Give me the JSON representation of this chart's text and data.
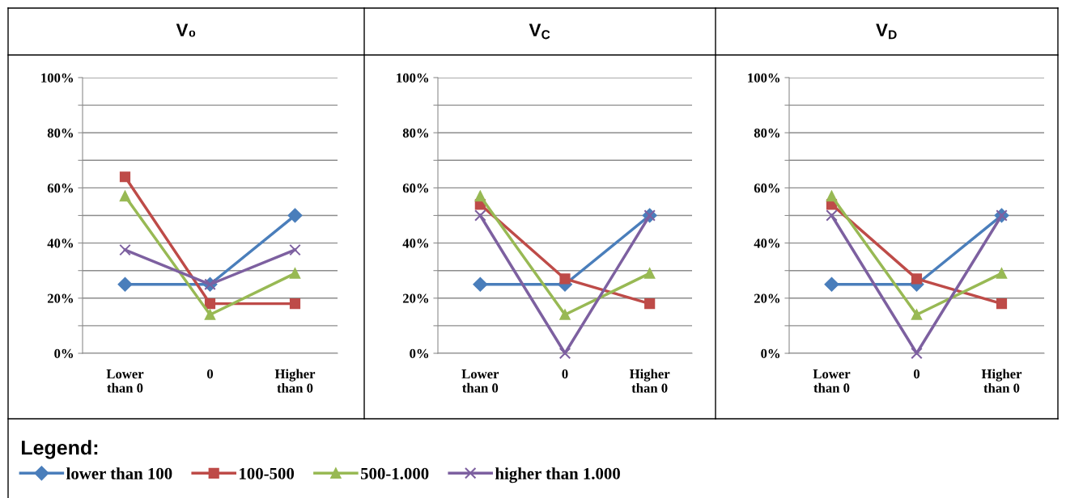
{
  "chart_data": [
    {
      "type": "line",
      "title": "V₀",
      "categories": [
        "Lower\nthan 0",
        "0",
        "Higher\nthan 0"
      ],
      "ylim": [
        0,
        100
      ],
      "yticks": [
        {
          "value": 0,
          "label": "0%"
        },
        {
          "value": 10,
          "label": null
        },
        {
          "value": 20,
          "label": "20%"
        },
        {
          "value": 30,
          "label": null
        },
        {
          "value": 40,
          "label": "40%"
        },
        {
          "value": 50,
          "label": null
        },
        {
          "value": 60,
          "label": "60%"
        },
        {
          "value": 70,
          "label": null
        },
        {
          "value": 80,
          "label": "80%"
        },
        {
          "value": 90,
          "label": null
        },
        {
          "value": 100,
          "label": "100%"
        }
      ],
      "grid": "y",
      "legend": "bottom",
      "legend_title": "Legend:",
      "series": [
        {
          "name": "lower than 100",
          "color": "#4a7ebb",
          "marker": "diamond",
          "values": [
            25,
            25,
            50
          ]
        },
        {
          "name": "100-500",
          "color": "#be4b48",
          "marker": "square",
          "values": [
            64,
            18,
            18
          ]
        },
        {
          "name": "500-1.000",
          "color": "#98b954",
          "marker": "triangle",
          "values": [
            57,
            14,
            29
          ]
        },
        {
          "name": "higher than 1.000",
          "color": "#7d60a0",
          "marker": "cross",
          "values": [
            37.5,
            25,
            37.5
          ]
        }
      ]
    },
    {
      "type": "line",
      "title": "V$_{C}$",
      "categories": [
        "Lower\nthan 0",
        "0",
        "Higher\nthan 0"
      ],
      "ylim": [
        0,
        100
      ],
      "yticks": [
        {
          "value": 0,
          "label": "0%"
        },
        {
          "value": 10,
          "label": null
        },
        {
          "value": 20,
          "label": "20%"
        },
        {
          "value": 30,
          "label": null
        },
        {
          "value": 40,
          "label": "40%"
        },
        {
          "value": 50,
          "label": null
        },
        {
          "value": 60,
          "label": "60%"
        },
        {
          "value": 70,
          "label": null
        },
        {
          "value": 80,
          "label": "80%"
        },
        {
          "value": 90,
          "label": null
        },
        {
          "value": 100,
          "label": "100%"
        }
      ],
      "grid": "y",
      "series": [
        {
          "color": "#4a7ebb",
          "marker": "diamond",
          "values": [
            25,
            25,
            50
          ]
        },
        {
          "color": "#be4b48",
          "marker": "square",
          "values": [
            54,
            27,
            18
          ]
        },
        {
          "color": "#98b954",
          "marker": "triangle",
          "values": [
            57,
            14,
            29
          ]
        },
        {
          "color": "#7d60a0",
          "marker": "cross",
          "values": [
            50,
            0,
            50
          ]
        }
      ]
    },
    {
      "type": "line",
      "title": "V$_{D}$",
      "categories": [
        "Lower\nthan 0",
        "0",
        "Higher\nthan 0"
      ],
      "ylim": [
        0,
        100
      ],
      "yticks": [
        {
          "value": 0,
          "label": "0%"
        },
        {
          "value": 10,
          "label": null
        },
        {
          "value": 20,
          "label": "20%"
        },
        {
          "value": 30,
          "label": null
        },
        {
          "value": 40,
          "label": "40%"
        },
        {
          "value": 50,
          "label": null
        },
        {
          "value": 60,
          "label": "60%"
        },
        {
          "value": 70,
          "label": null
        },
        {
          "value": 80,
          "label": "80%"
        },
        {
          "value": 90,
          "label": null
        },
        {
          "value": 100,
          "label": "100%"
        }
      ],
      "grid": "y",
      "series": [
        {
          "color": "#4a7ebb",
          "marker": "diamond",
          "values": [
            25,
            25,
            50
          ]
        },
        {
          "color": "#be4b48",
          "marker": "square",
          "values": [
            54,
            27,
            18
          ]
        },
        {
          "color": "#98b954",
          "marker": "triangle",
          "values": [
            57,
            14,
            29
          ]
        },
        {
          "color": "#7d60a0",
          "marker": "cross",
          "values": [
            50,
            0,
            50
          ]
        }
      ]
    }
  ]
}
